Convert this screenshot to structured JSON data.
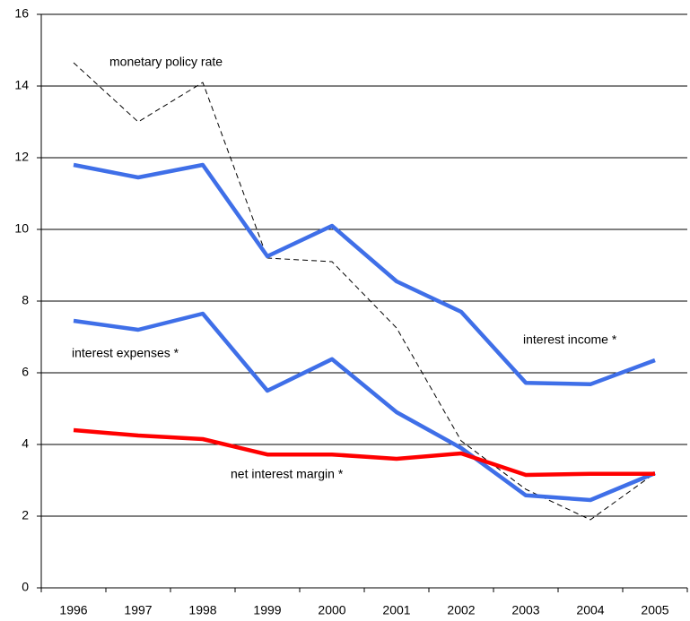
{
  "chart_data": {
    "type": "line",
    "categories": [
      "1996",
      "1997",
      "1998",
      "1999",
      "2000",
      "2001",
      "2002",
      "2003",
      "2004",
      "2005"
    ],
    "series": [
      {
        "name": "monetary policy rate",
        "color": "#000000",
        "line_style": "dashed",
        "values": [
          14.65,
          13.0,
          14.1,
          9.2,
          9.1,
          7.25,
          4.1,
          2.75,
          1.9,
          3.2
        ]
      },
      {
        "name": "interest income *",
        "color": "#3f6fe8",
        "line_style": "solid",
        "values": [
          11.8,
          11.45,
          11.8,
          9.25,
          10.1,
          8.55,
          7.7,
          5.72,
          5.68,
          6.35
        ]
      },
      {
        "name": "interest expenses *",
        "color": "#3f6fe8",
        "line_style": "solid",
        "values": [
          7.45,
          7.2,
          7.65,
          5.5,
          6.38,
          4.9,
          3.9,
          2.58,
          2.45,
          3.2
        ]
      },
      {
        "name": "net interest margin *",
        "color": "#ff0000",
        "line_style": "solid",
        "values": [
          4.4,
          4.25,
          4.15,
          3.72,
          3.72,
          3.6,
          3.75,
          3.15,
          3.18,
          3.18
        ]
      }
    ],
    "ylim": [
      0,
      16
    ],
    "yticks": [
      0,
      2,
      4,
      6,
      8,
      10,
      12,
      14,
      16
    ],
    "grid": true
  }
}
